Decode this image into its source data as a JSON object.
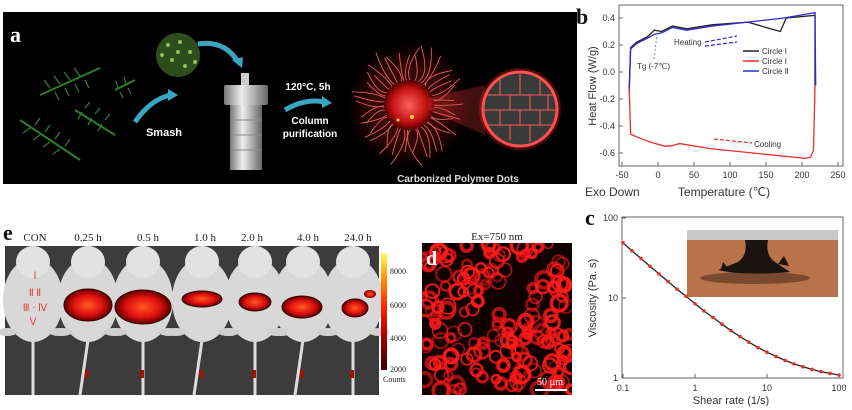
{
  "panel_a": {
    "letter": "a",
    "step1": "Smash",
    "step2_condition": "120°C, 5h",
    "step2_line1": "Column",
    "step2_line2": "purification",
    "product": "Carbonized Polymer Dots",
    "background": "#000000"
  },
  "panel_e": {
    "letter": "e",
    "labels": [
      "CON",
      "0.25 h",
      "0.5 h",
      "1.0 h",
      "2.0 h",
      "4.0 h",
      "24.0 h"
    ],
    "organ_labels": [
      "Ⅰ",
      "Ⅱ Ⅱ",
      "Ⅲ · Ⅳ",
      "Ⅴ"
    ],
    "colorbar": {
      "ticks": [
        "8000",
        "6000",
        "4000",
        "2000"
      ],
      "label": "Counts",
      "colors": [
        "#3a0000",
        "#b00000",
        "#ff2a00",
        "#ff9a00",
        "#ffff66"
      ]
    }
  },
  "panel_d": {
    "letter": "d",
    "title": "Ex=750 nm",
    "scale_bar": "50 µm",
    "color": "#ff1a1a"
  },
  "chart_data": [
    {
      "panel": "b",
      "type": "line",
      "xlabel": "Temperature (℃)",
      "ylabel": "Heat Flow (W/g)",
      "corner_note": "Exo Down",
      "xlim": [
        -50,
        250
      ],
      "ylim": [
        -0.7,
        0.5
      ],
      "xticks": [
        "-50",
        "0",
        "50",
        "100",
        "150",
        "200",
        "250"
      ],
      "yticks": [
        "0.4",
        "0.2",
        "0.0",
        "-0.2",
        "-0.4",
        "-0.6"
      ],
      "legend_position": "top-right",
      "annotations": {
        "heating": "Heating",
        "cooling": "Cooling",
        "tg": "Tg (-7℃)"
      },
      "series": [
        {
          "name": "Circle Ⅰ",
          "color": "#222222",
          "x": [
            -40,
            -38,
            -30,
            -15,
            -5,
            5,
            20,
            40,
            75,
            125,
            150,
            170,
            178,
            218,
            218
          ],
          "y": [
            -0.15,
            0.18,
            0.22,
            0.26,
            0.31,
            0.3,
            0.34,
            0.32,
            0.35,
            0.37,
            0.33,
            0.3,
            0.4,
            0.42,
            -0.1
          ]
        },
        {
          "name": "Circle Ⅰ",
          "color": "#e8302a",
          "x": [
            218,
            216,
            212,
            205,
            150,
            75,
            30,
            20,
            10,
            -10,
            -30,
            -38,
            -40
          ],
          "y": [
            -0.1,
            -0.58,
            -0.63,
            -0.64,
            -0.61,
            -0.57,
            -0.53,
            -0.545,
            -0.55,
            -0.52,
            -0.48,
            -0.46,
            -0.12
          ]
        },
        {
          "name": "Circle Ⅱ",
          "color": "#2b2bd0",
          "x": [
            -40,
            -38,
            -30,
            -15,
            -5,
            5,
            20,
            40,
            75,
            125,
            175,
            218,
            219
          ],
          "y": [
            -0.12,
            0.17,
            0.21,
            0.25,
            0.28,
            0.29,
            0.33,
            0.31,
            0.34,
            0.37,
            0.4,
            0.44,
            -0.1
          ]
        }
      ]
    },
    {
      "panel": "c",
      "type": "scatter",
      "xlabel": "Shear rate (1/s)",
      "ylabel": "Viscosity (Pa. s)",
      "xscale": "log",
      "yscale": "log",
      "xlim": [
        0.1,
        100
      ],
      "ylim": [
        1,
        100
      ],
      "xticks": [
        "0.1",
        "1",
        "10",
        "100"
      ],
      "yticks": [
        "100",
        "10",
        "1"
      ],
      "marker_color": "#e8302a",
      "line_color": "#222222",
      "x": [
        0.1,
        0.133,
        0.178,
        0.237,
        0.316,
        0.422,
        0.562,
        0.75,
        1,
        1.33,
        1.78,
        2.37,
        3.16,
        4.22,
        5.62,
        7.5,
        10,
        13.3,
        17.8,
        23.7,
        31.6,
        42.2,
        56.2,
        75,
        100
      ],
      "y": [
        48.9,
        39.0,
        31.2,
        24.9,
        20.0,
        16.1,
        12.9,
        10.5,
        8.5,
        6.9,
        5.7,
        4.7,
        3.9,
        3.3,
        2.8,
        2.4,
        2.1,
        1.86,
        1.66,
        1.5,
        1.38,
        1.28,
        1.2,
        1.14,
        1.09
      ]
    }
  ]
}
